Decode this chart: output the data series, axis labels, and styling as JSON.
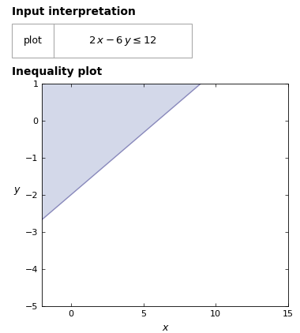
{
  "title_text": "Input interpretation",
  "ineq_label": "2 x − 6 y ≤ 12",
  "subtitle_text": "Inequality plot",
  "xlim": [
    -2,
    15
  ],
  "ylim": [
    -5,
    1
  ],
  "xticks": [
    0,
    5,
    10,
    15
  ],
  "yticks": [
    -5,
    -4,
    -3,
    -2,
    -1,
    0,
    1
  ],
  "xlabel": "x",
  "ylabel": "y",
  "fill_color": "#b0b8d8",
  "fill_alpha": 0.55,
  "bg_color": "#ffffff",
  "ax_bg_color": "#ffffff",
  "line_color": "#8888bb"
}
